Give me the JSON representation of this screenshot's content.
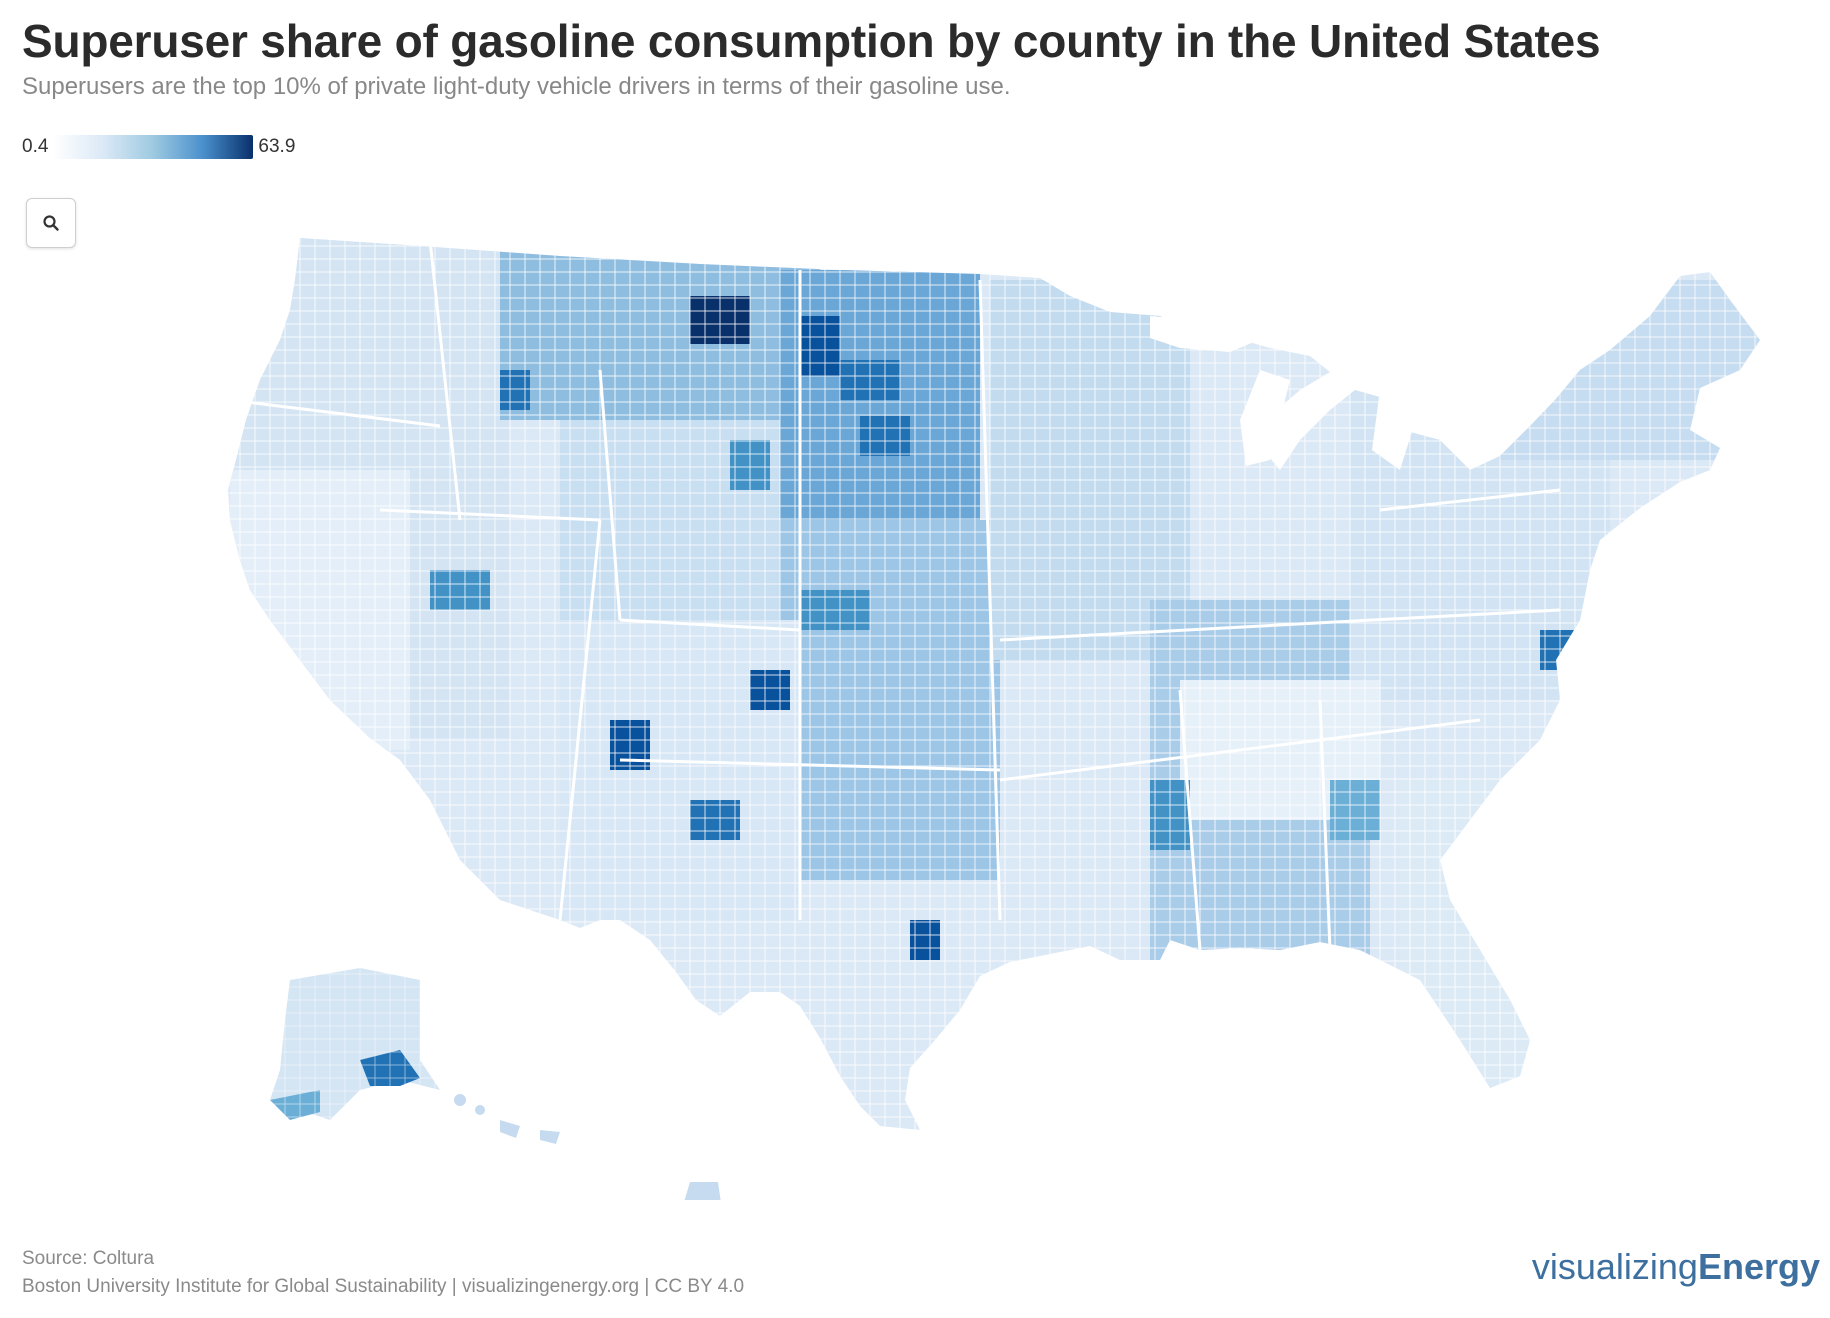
{
  "title": "Superuser share of gasoline consumption by county in the United States",
  "subtitle": "Superusers are the top 10% of private light-duty vehicle drivers in terms of their gasoline use.",
  "legend": {
    "min_label": "0.4",
    "max_label": "63.9",
    "min_value": 0.4,
    "max_value": 63.9,
    "colors": [
      "#ffffff",
      "#08306b"
    ]
  },
  "controls": {
    "zoom_icon": "search-icon"
  },
  "map": {
    "type": "choropleth",
    "geography": "US counties",
    "base_color": "#dbe8f5",
    "border_color": "#ffffff"
  },
  "footer": {
    "source": "Source: Coltura",
    "credit": "Boston University Institute for Global Sustainability | visualizingenergy.org | CC BY 4.0",
    "brand_light": "visualizing",
    "brand_bold": "Energy"
  }
}
